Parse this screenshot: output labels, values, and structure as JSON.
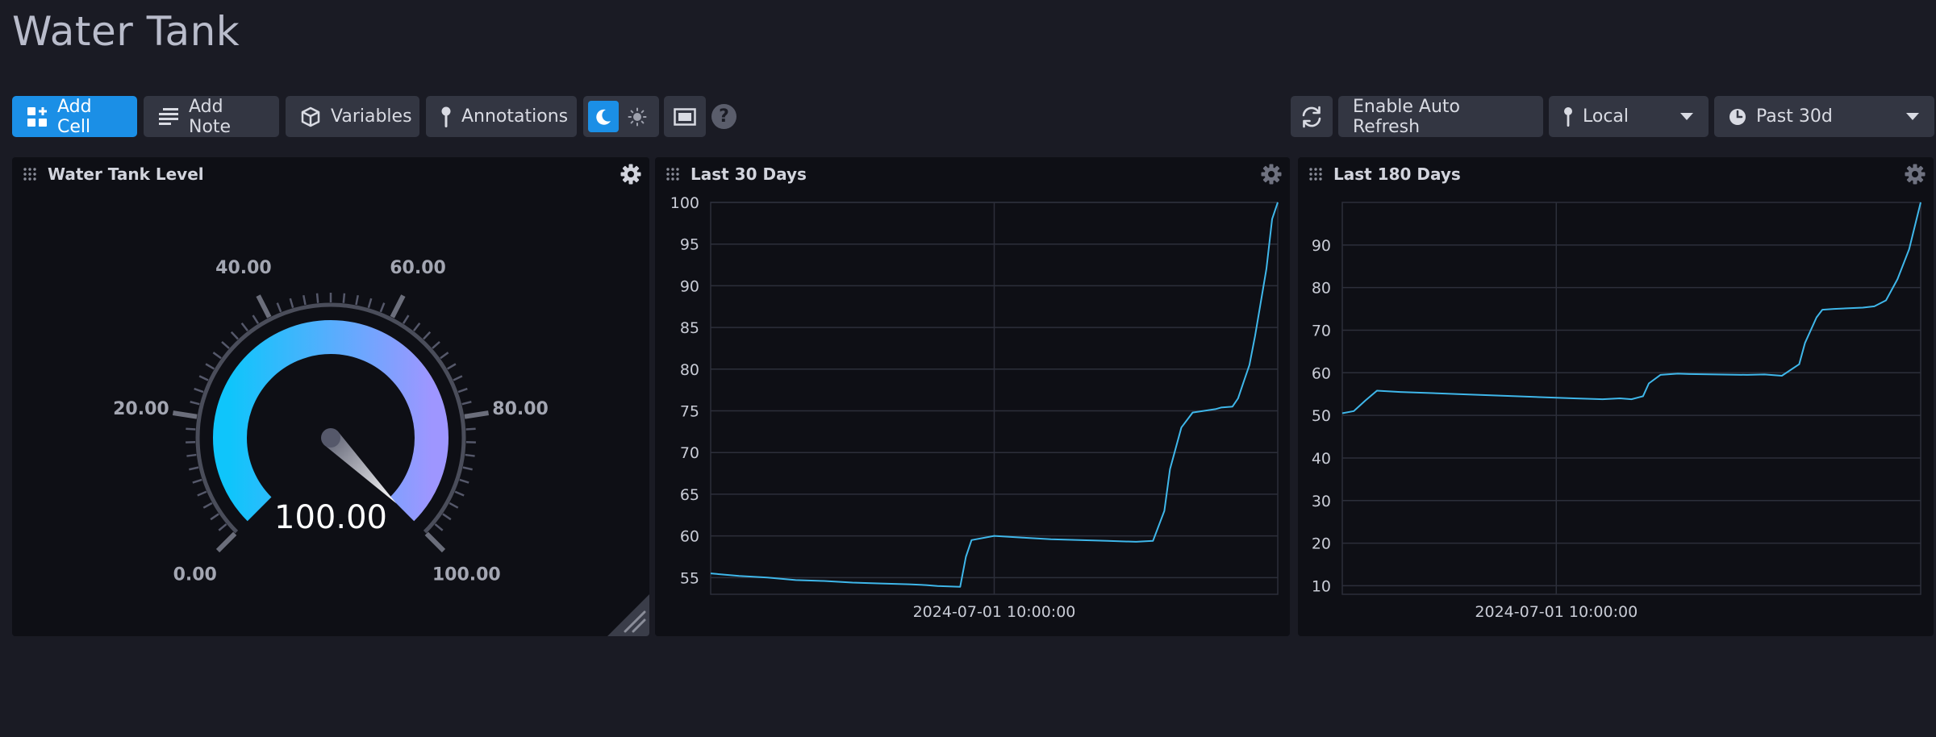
{
  "page": {
    "title": "Water Tank"
  },
  "toolbar": {
    "add_cell": "Add Cell",
    "add_note": "Add Note",
    "variables": "Variables",
    "annotations": "Annotations",
    "help": "?",
    "auto_refresh": "Enable Auto Refresh",
    "timezone": "Local",
    "time_range": "Past 30d",
    "theme": "dark"
  },
  "colors": {
    "background": "#1a1b24",
    "cell_bg": "#0e0f15",
    "primary": "#1b8fe6",
    "line": "#3fb7ea",
    "gauge_start": "#0fc5fb",
    "gauge_end": "#9e96ff"
  },
  "cells": {
    "gauge": {
      "title": "Water Tank Level",
      "value": "100.00",
      "min": 0,
      "max": 100,
      "ticks": [
        "0.00",
        "20.00",
        "40.00",
        "60.00",
        "80.00",
        "100.00"
      ]
    },
    "last30": {
      "title": "Last 30 Days",
      "x_label": "2024-07-01 10:00:00"
    },
    "last180": {
      "title": "Last 180 Days",
      "x_label": "2024-07-01 10:00:00"
    }
  },
  "chart_data": [
    {
      "type": "line",
      "title": "Last 30 Days",
      "ylim": [
        53,
        100
      ],
      "yticks": [
        55,
        60,
        65,
        70,
        75,
        80,
        85,
        90,
        95,
        100
      ],
      "xticks": [
        "2024-07-01 10:00:00"
      ],
      "grid": true,
      "x": [
        0,
        0.05,
        0.1,
        0.15,
        0.2,
        0.25,
        0.3,
        0.35,
        0.38,
        0.4,
        0.44,
        0.45,
        0.46,
        0.5,
        0.55,
        0.6,
        0.65,
        0.7,
        0.75,
        0.78,
        0.8,
        0.81,
        0.83,
        0.85,
        0.87,
        0.89,
        0.9,
        0.92,
        0.93,
        0.94,
        0.95,
        0.96,
        0.97,
        0.98,
        0.99,
        1.0
      ],
      "y": [
        55.5,
        55.2,
        55.0,
        54.7,
        54.6,
        54.4,
        54.3,
        54.2,
        54.1,
        54.0,
        53.9,
        57.5,
        59.5,
        60.0,
        59.8,
        59.6,
        59.5,
        59.4,
        59.3,
        59.4,
        63.0,
        68.0,
        73.0,
        74.8,
        75.0,
        75.2,
        75.4,
        75.5,
        76.5,
        78.5,
        80.5,
        84.0,
        88.0,
        92.0,
        98.0,
        100.0
      ]
    },
    {
      "type": "line",
      "title": "Last 180 Days",
      "ylim": [
        8,
        100
      ],
      "yticks": [
        10,
        20,
        30,
        40,
        50,
        60,
        70,
        80,
        90
      ],
      "xticks": [
        "2024-07-01 10:00:00"
      ],
      "grid": true,
      "x": [
        0,
        0.02,
        0.04,
        0.06,
        0.1,
        0.2,
        0.3,
        0.4,
        0.45,
        0.48,
        0.5,
        0.52,
        0.53,
        0.55,
        0.58,
        0.6,
        0.7,
        0.73,
        0.76,
        0.79,
        0.8,
        0.82,
        0.83,
        0.85,
        0.9,
        0.92,
        0.94,
        0.96,
        0.98,
        1.0
      ],
      "y": [
        50.5,
        51.0,
        53.5,
        55.8,
        55.5,
        55.0,
        54.5,
        54.0,
        53.8,
        54.0,
        53.8,
        54.5,
        57.5,
        59.5,
        59.8,
        59.7,
        59.5,
        59.6,
        59.3,
        62.0,
        67.0,
        73.0,
        74.8,
        75.0,
        75.3,
        75.6,
        77.0,
        82.0,
        89.0,
        100.0
      ]
    }
  ]
}
